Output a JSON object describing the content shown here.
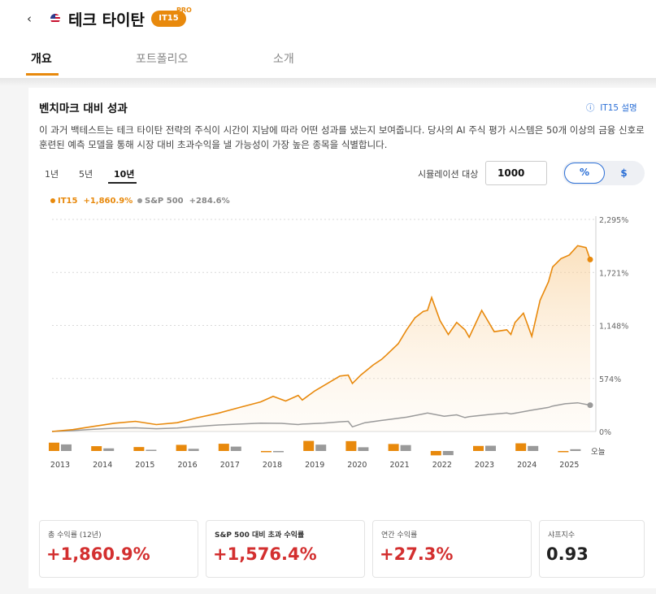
{
  "header": {
    "back_icon": "chevron-left-icon",
    "flag_icon": "us-flag-icon",
    "title": "테크 타이탄",
    "badge": "IT15",
    "badge_tag": "PRO"
  },
  "tabs": [
    {
      "label": "개요",
      "active": true
    },
    {
      "label": "포트폴리오",
      "active": false
    },
    {
      "label": "소개",
      "active": false
    }
  ],
  "section": {
    "title": "벤치마크 대비 성과",
    "info_link": "IT15 설명",
    "info_icon": "info-circle-icon",
    "description": "이 과거 백테스트는 테크 타이탄 전략의 주식이 시간이 지남에 따라 어떤 성과를 냈는지 보여줍니다. 당사의 AI 주식 평가 시스템은 50개 이상의 금융 신호로 훈련된 예측 모델을 통해 시장 대비 초과수익을 낼 가능성이 가장 높은 종목을 식별합니다."
  },
  "controls": {
    "periods": [
      {
        "label": "1년",
        "active": false
      },
      {
        "label": "5년",
        "active": false
      },
      {
        "label": "10년",
        "active": true
      }
    ],
    "simulation_label": "시뮬레이션 대상",
    "simulation_value": "1000",
    "toggle_percent": "%",
    "toggle_dollar": "$"
  },
  "colors": {
    "accent": "#e8890c",
    "benchmark": "#9a9a9a",
    "positive": "#d32f2f",
    "link": "#2b6fd6"
  },
  "chart_data": {
    "type": "line",
    "ylim": [
      0,
      2295
    ],
    "y_ticks": [
      "2,295%",
      "1,721%",
      "1,148%",
      "574%",
      "0%"
    ],
    "x_ticks": [
      "2013",
      "2014",
      "2015",
      "2016",
      "2017",
      "2018",
      "2019",
      "2020",
      "2021",
      "2022",
      "2023",
      "2024",
      "2025",
      "오늘"
    ],
    "series": [
      {
        "name": "IT15",
        "label": "+1,860.9%",
        "x": [
          2013.0,
          2013.5,
          2014.0,
          2014.5,
          2015.0,
          2015.5,
          2016.0,
          2016.5,
          2017.0,
          2017.5,
          2018.0,
          2018.3,
          2018.6,
          2018.9,
          2019.0,
          2019.3,
          2019.6,
          2019.9,
          2020.1,
          2020.2,
          2020.4,
          2020.7,
          2020.9,
          2021.0,
          2021.3,
          2021.5,
          2021.7,
          2021.9,
          2022.0,
          2022.1,
          2022.3,
          2022.5,
          2022.7,
          2022.9,
          2023.0,
          2023.3,
          2023.6,
          2023.9,
          2024.0,
          2024.1,
          2024.3,
          2024.5,
          2024.7,
          2024.9,
          2025.0,
          2025.2,
          2025.4,
          2025.6,
          2025.8,
          2025.9
        ],
        "values": [
          0,
          20,
          55,
          90,
          110,
          75,
          95,
          150,
          200,
          260,
          320,
          380,
          330,
          390,
          340,
          440,
          520,
          600,
          610,
          520,
          610,
          720,
          780,
          820,
          950,
          1100,
          1230,
          1300,
          1310,
          1450,
          1200,
          1050,
          1180,
          1100,
          1020,
          1310,
          1080,
          1100,
          1050,
          1180,
          1280,
          1030,
          1420,
          1620,
          1780,
          1870,
          1910,
          2010,
          1990,
          1861
        ]
      },
      {
        "name": "S&P 500",
        "label": "+284.6%",
        "x": [
          2013.0,
          2013.5,
          2014.0,
          2014.5,
          2015.0,
          2015.5,
          2016.0,
          2016.5,
          2017.0,
          2017.5,
          2018.0,
          2018.5,
          2018.9,
          2019.0,
          2019.5,
          2019.9,
          2020.1,
          2020.2,
          2020.5,
          2020.9,
          2021.0,
          2021.5,
          2021.9,
          2022.0,
          2022.4,
          2022.7,
          2022.9,
          2023.0,
          2023.5,
          2023.9,
          2024.0,
          2024.5,
          2024.9,
          2025.0,
          2025.3,
          2025.6,
          2025.9
        ],
        "values": [
          0,
          10,
          25,
          35,
          40,
          30,
          38,
          55,
          70,
          80,
          90,
          88,
          75,
          80,
          90,
          105,
          110,
          50,
          95,
          120,
          125,
          155,
          190,
          200,
          165,
          180,
          150,
          160,
          185,
          200,
          190,
          230,
          260,
          275,
          300,
          310,
          285
        ]
      }
    ],
    "annual_returns": {
      "years": [
        "2013",
        "2014",
        "2015",
        "2016",
        "2017",
        "2018",
        "2019",
        "2020",
        "2021",
        "2022",
        "2023",
        "2024",
        "2025"
      ],
      "it15": [
        38,
        22,
        18,
        28,
        33,
        -3,
        46,
        45,
        32,
        -20,
        23,
        35,
        -5
      ],
      "sp500": [
        30,
        12,
        1,
        10,
        20,
        -5,
        29,
        17,
        27,
        -19,
        24,
        23,
        8
      ]
    },
    "grid": true,
    "legend": "top-left"
  },
  "stats": [
    {
      "label": "총 수익률 (12년)",
      "value": "+1,860.9%"
    },
    {
      "label": "S&P 500 대비 초과 수익률",
      "value": "+1,576.4%"
    },
    {
      "label": "연간 수익률",
      "value": "+27.3%"
    },
    {
      "label": "샤프지수",
      "value": "0.93"
    }
  ]
}
